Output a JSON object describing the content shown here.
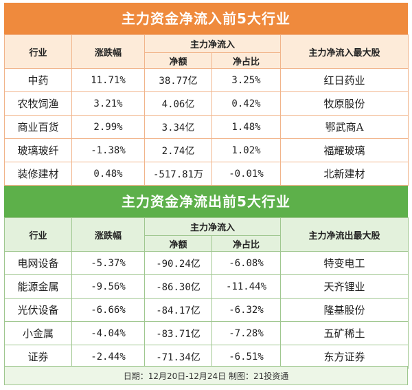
{
  "inflow": {
    "title": "主力资金净流入前5大行业",
    "headers": {
      "industry": "行业",
      "change": "涨跌幅",
      "group": "主力净流入",
      "amount": "净额",
      "ratio": "净占比",
      "top_stock": "主力净流入最大股"
    },
    "rows": [
      {
        "industry": "中药",
        "change": "11.71%",
        "amount": "38.77亿",
        "ratio": "3.25%",
        "stock": "红日药业"
      },
      {
        "industry": "农牧饲渔",
        "change": "3.21%",
        "amount": "4.06亿",
        "ratio": "0.42%",
        "stock": "牧原股份"
      },
      {
        "industry": "商业百货",
        "change": "2.99%",
        "amount": "3.34亿",
        "ratio": "1.48%",
        "stock": "鄂武商A"
      },
      {
        "industry": "玻璃玻纤",
        "change": "-1.38%",
        "amount": "2.74亿",
        "ratio": "1.02%",
        "stock": "福耀玻璃"
      },
      {
        "industry": "装修建材",
        "change": "0.48%",
        "amount": "-517.81万",
        "ratio": "-0.01%",
        "stock": "北新建材"
      }
    ]
  },
  "outflow": {
    "title": "主力资金净流出前5大行业",
    "headers": {
      "industry": "行业",
      "change": "涨跌幅",
      "group": "主力净流入",
      "amount": "净额",
      "ratio": "净占比",
      "top_stock": "主力净流出最大股"
    },
    "rows": [
      {
        "industry": "电网设备",
        "change": "-5.37%",
        "amount": "-90.24亿",
        "ratio": "-6.08%",
        "stock": "特变电工"
      },
      {
        "industry": "能源金属",
        "change": "-9.56%",
        "amount": "-86.30亿",
        "ratio": "-11.44%",
        "stock": "天齐锂业"
      },
      {
        "industry": "光伏设备",
        "change": "-6.66%",
        "amount": "-84.17亿",
        "ratio": "-6.32%",
        "stock": "隆基股份"
      },
      {
        "industry": "小金属",
        "change": "-4.04%",
        "amount": "-83.71亿",
        "ratio": "-7.28%",
        "stock": "五矿稀土"
      },
      {
        "industry": "证券",
        "change": "-2.44%",
        "amount": "-71.34亿",
        "ratio": "-6.51%",
        "stock": "东方证券"
      }
    ]
  },
  "footer": "日期：12月20日-12月24日  制图：21投资通",
  "colors": {
    "orange_banner": "#ef8a3d",
    "green_banner": "#5db04a"
  }
}
